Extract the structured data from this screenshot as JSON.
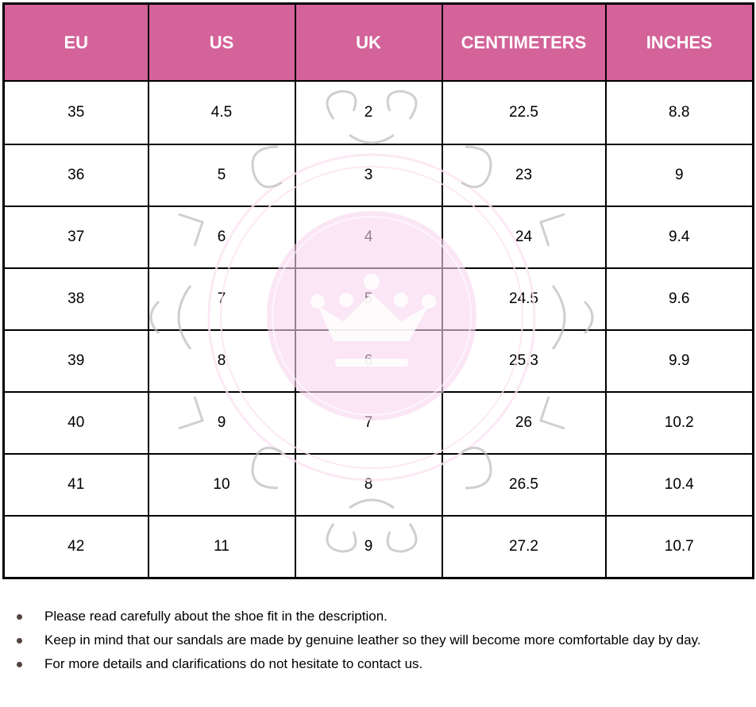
{
  "table": {
    "headers": [
      "EU",
      "US",
      "UK",
      "CENTIMETERS",
      "INCHES"
    ],
    "rows": [
      [
        "35",
        "4.5",
        "2",
        "22.5",
        "8.8"
      ],
      [
        "36",
        "5",
        "3",
        "23",
        "9"
      ],
      [
        "37",
        "6",
        "4",
        "24",
        "9.4"
      ],
      [
        "38",
        "7",
        "5",
        "24.5",
        "9.6"
      ],
      [
        "39",
        "8",
        "6",
        "25.3",
        "9.9"
      ],
      [
        "40",
        "9",
        "7",
        "26",
        "10.2"
      ],
      [
        "41",
        "10",
        "8",
        "26.5",
        "10.4"
      ],
      [
        "42",
        "11",
        "9",
        "27.2",
        "10.7"
      ]
    ],
    "header_color": "#D36399"
  },
  "watermark": {
    "icon": "crown-logo-icon",
    "color": "#F9D6EE"
  },
  "notes": [
    "Please read carefully about the shoe fit in the description.",
    "Keep in mind that our sandals are made by genuine leather so they will become more comfortable day by day.",
    "For more details and clarifications do not hesitate to contact us."
  ]
}
